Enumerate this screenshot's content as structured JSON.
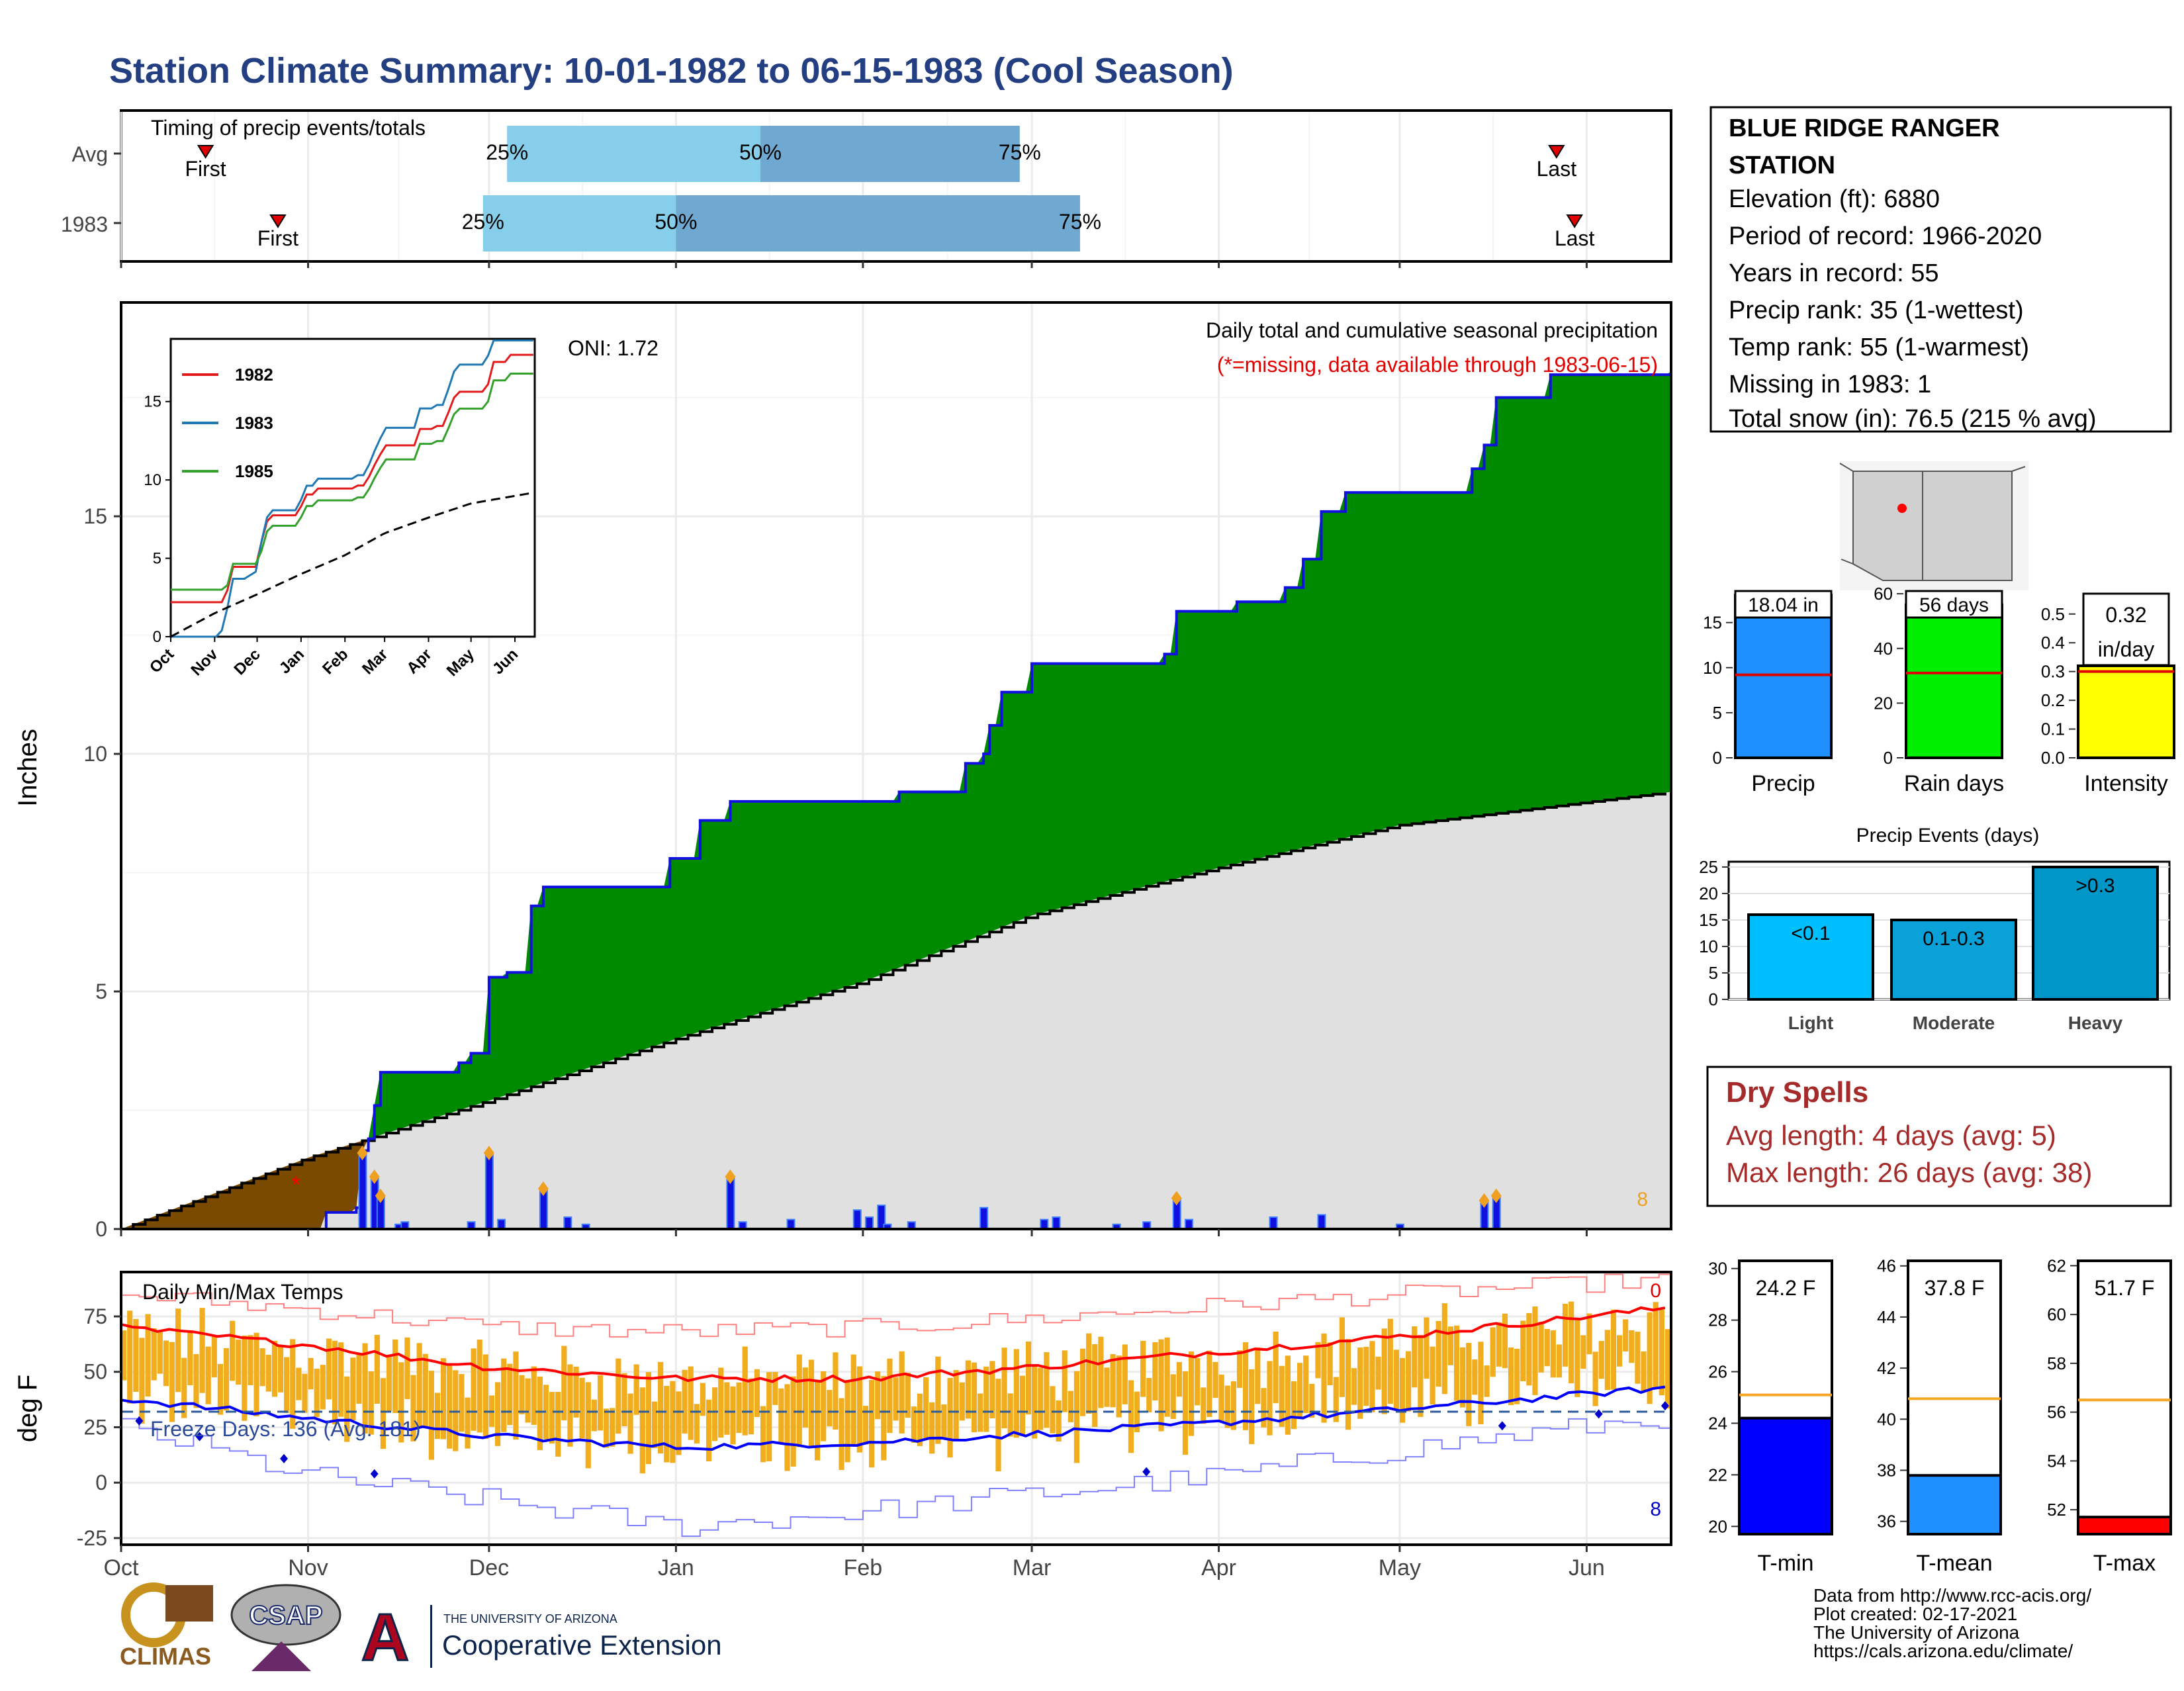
{
  "page": {
    "title": "Station Climate Summary: 10-01-1982 to 06-15-1983 (Cool Season)",
    "colors": {
      "title": "#233f82",
      "precip_green": "#008a00",
      "precip_brown": "#7a4a00",
      "avg_gray": "#e0e0e0",
      "daily_blue": "#1010e0",
      "temp_orange": "#f0ad1e",
      "dry_red": "#a52a2a"
    }
  },
  "timing_panel": {
    "title": "Timing of precip events/totals",
    "rows": [
      {
        "label": "Avg",
        "first_label": "First",
        "last_label": "Last",
        "first_date": "Oct 15",
        "last_date": "May 27",
        "p25_label": "25%",
        "p50_label": "50%",
        "p75_label": "75%",
        "p25_date": "Dec 04",
        "p50_date": "Jan 15",
        "p75_date": "Feb 27"
      },
      {
        "label": "1983",
        "first_label": "First",
        "last_label": "Last",
        "first_date": "Oct 27",
        "last_date": "May 30",
        "p25_label": "25%",
        "p50_label": "50%",
        "p75_label": "75%",
        "p25_date": "Nov 30",
        "p50_date": "Jan 01",
        "p75_date": "Mar 09"
      }
    ]
  },
  "precip_panel": {
    "ylabel": "Inches",
    "y_ticks": [
      "0",
      "5",
      "10",
      "15"
    ],
    "oni": "ONI: 1.72",
    "title": "Daily total and cumulative seasonal precipitation",
    "subtitle": "(*=missing, data available through 1983-06-15)",
    "corner_value": "8"
  },
  "inset": {
    "legend": [
      "1982",
      "1983",
      "1985"
    ],
    "y_ticks": [
      "0",
      "5",
      "10",
      "15"
    ],
    "x_ticks": [
      "Oct",
      "Nov",
      "Dec",
      "Jan",
      "Feb",
      "Mar",
      "Apr",
      "May",
      "Jun"
    ]
  },
  "temp_panel": {
    "ylabel": "deg F",
    "title": "Daily Min/Max Temps",
    "freeze_label": "Freeze Days: 136 (Avg: 181)",
    "y_ticks": [
      "-25",
      "0",
      "25",
      "50",
      "75"
    ],
    "corner_top": "0",
    "corner_bottom": "8"
  },
  "x_axis_months": [
    "Oct",
    "Nov",
    "Dec",
    "Jan",
    "Feb",
    "Mar",
    "Apr",
    "May",
    "Jun"
  ],
  "station": {
    "name_line1": "BLUE RIDGE RANGER",
    "name_line2": "STATION",
    "lines": [
      "Elevation (ft): 6880",
      "Period of record: 1966-2020",
      "Years in record: 55",
      "Precip rank: 35 (1-wettest)",
      "Temp rank: 55 (1-warmest)",
      "Missing in 1983: 1",
      "Total snow (in): 76.5 (215 % avg)"
    ]
  },
  "stat_bars": [
    {
      "label": "Precip",
      "value_label": "18.04 in",
      "value": 18.04,
      "avg": 9.2,
      "ymax": 18.5,
      "ticks": [
        "0",
        "5",
        "10",
        "15"
      ],
      "tick_vals": [
        0,
        5,
        10,
        15
      ],
      "color": "#1e90ff"
    },
    {
      "label": "Rain days",
      "value_label": "56 days",
      "value": 56,
      "avg": 31,
      "ymax": 61,
      "ticks": [
        "0",
        "20",
        "40",
        "60"
      ],
      "tick_vals": [
        0,
        20,
        40,
        60
      ],
      "color": "#00ee00"
    },
    {
      "label": "Intensity",
      "value_label": "0.32",
      "value_label2": "in/day",
      "value": 0.32,
      "avg": 0.3,
      "ymax": 0.58,
      "ticks": [
        "0.0",
        "0.1",
        "0.2",
        "0.3",
        "0.4",
        "0.5"
      ],
      "tick_vals": [
        0,
        0.1,
        0.2,
        0.3,
        0.4,
        0.5
      ],
      "color": "#ffff00"
    }
  ],
  "precip_events": {
    "title": "Precip Events (days)",
    "ticks": [
      "0",
      "5",
      "10",
      "15",
      "20",
      "25"
    ],
    "tick_vals": [
      0,
      5,
      10,
      15,
      20,
      25
    ],
    "categories": [
      "Light",
      "Moderate",
      "Heavy"
    ],
    "bar_labels": [
      "<0.1",
      "0.1-0.3",
      ">0.3"
    ],
    "values": [
      16,
      15,
      25
    ],
    "colors": [
      "#00bfff",
      "#0aa0d8",
      "#0096c8"
    ]
  },
  "dry_spells": {
    "title": "Dry Spells",
    "avg_line": "Avg length: 4 days (avg: 5)",
    "max_line": "Max length: 26 days (avg: 38)"
  },
  "temp_bars": [
    {
      "label": "T-min",
      "value_label": "24.2 F",
      "value": 24.2,
      "avg": 25.1,
      "ymin": 19.7,
      "ymax": 30.3,
      "ticks": [
        "20",
        "22",
        "24",
        "26",
        "28",
        "30"
      ],
      "tick_vals": [
        20,
        22,
        24,
        26,
        28,
        30
      ],
      "color": "#0000ff"
    },
    {
      "label": "T-mean",
      "value_label": "37.8 F",
      "value": 37.8,
      "avg": 40.8,
      "ymin": 35.5,
      "ymax": 46.2,
      "ticks": [
        "36",
        "38",
        "40",
        "42",
        "44",
        "46"
      ],
      "tick_vals": [
        36,
        38,
        40,
        42,
        44,
        46
      ],
      "color": "#1e90ff"
    },
    {
      "label": "T-max",
      "value_label": "51.7 F",
      "value": 51.7,
      "avg": 56.5,
      "ymin": 51.0,
      "ymax": 62.2,
      "ticks": [
        "52",
        "54",
        "56",
        "58",
        "60",
        "62"
      ],
      "tick_vals": [
        52,
        54,
        56,
        58,
        60,
        62
      ],
      "color": "#ff0000"
    }
  ],
  "footer": {
    "lines": [
      "Data from http://www.rcc-acis.org/",
      "Plot created: 02-17-2021",
      "The University of Arizona",
      "https://cals.arizona.edu/climate/"
    ],
    "climas_logo": "CLIMAS",
    "csap_logo": "CSAP",
    "ua_small": "THE UNIVERSITY OF ARIZONA",
    "ua_big": "Cooperative Extension"
  },
  "chart_data": [
    {
      "type": "area",
      "title": "Daily total and cumulative seasonal precipitation",
      "ylabel": "Inches",
      "x_range": [
        "1982-10-01",
        "1983-06-15"
      ],
      "ylim": [
        0,
        19.5
      ],
      "cumulative_1983": [
        {
          "x": "1982-10-01",
          "y": 0
        },
        {
          "x": "1982-11-04",
          "y": 0.35
        },
        {
          "x": "1982-11-09",
          "y": 0.45
        },
        {
          "x": "1982-11-10",
          "y": 1.65
        },
        {
          "x": "1982-11-11",
          "y": 1.9
        },
        {
          "x": "1982-11-12",
          "y": 2.6
        },
        {
          "x": "1982-11-13",
          "y": 3.3
        },
        {
          "x": "1982-11-26",
          "y": 3.5
        },
        {
          "x": "1982-11-28",
          "y": 3.7
        },
        {
          "x": "1982-12-01",
          "y": 5.3
        },
        {
          "x": "1982-12-04",
          "y": 5.4
        },
        {
          "x": "1982-12-08",
          "y": 6.8
        },
        {
          "x": "1982-12-10",
          "y": 7.2
        },
        {
          "x": "1982-12-31",
          "y": 7.8
        },
        {
          "x": "1983-01-05",
          "y": 8.6
        },
        {
          "x": "1983-01-10",
          "y": 9.0
        },
        {
          "x": "1983-02-07",
          "y": 9.2
        },
        {
          "x": "1983-02-18",
          "y": 9.8
        },
        {
          "x": "1983-02-21",
          "y": 10.0
        },
        {
          "x": "1983-02-22",
          "y": 10.6
        },
        {
          "x": "1983-02-24",
          "y": 11.3
        },
        {
          "x": "1983-03-01",
          "y": 11.9
        },
        {
          "x": "1983-03-23",
          "y": 12.1
        },
        {
          "x": "1983-03-25",
          "y": 13.0
        },
        {
          "x": "1983-04-04",
          "y": 13.2
        },
        {
          "x": "1983-04-12",
          "y": 13.5
        },
        {
          "x": "1983-04-15",
          "y": 14.1
        },
        {
          "x": "1983-04-18",
          "y": 15.1
        },
        {
          "x": "1983-04-22",
          "y": 15.5
        },
        {
          "x": "1983-05-13",
          "y": 16.0
        },
        {
          "x": "1983-05-15",
          "y": 16.5
        },
        {
          "x": "1983-05-17",
          "y": 17.5
        },
        {
          "x": "1983-05-26",
          "y": 17.98
        },
        {
          "x": "1983-06-15",
          "y": 18.04
        }
      ],
      "average_cumulative": [
        {
          "x": "1982-10-01",
          "y": 0
        },
        {
          "x": "1982-11-01",
          "y": 1.5
        },
        {
          "x": "1982-12-01",
          "y": 2.7
        },
        {
          "x": "1983-01-01",
          "y": 4.0
        },
        {
          "x": "1983-02-01",
          "y": 5.2
        },
        {
          "x": "1983-03-01",
          "y": 6.6
        },
        {
          "x": "1983-04-01",
          "y": 7.6
        },
        {
          "x": "1983-05-01",
          "y": 8.5
        },
        {
          "x": "1983-06-15",
          "y": 9.2
        }
      ],
      "daily_precip": [
        {
          "x": "1982-11-10",
          "y": 1.6
        },
        {
          "x": "1982-11-12",
          "y": 1.1
        },
        {
          "x": "1982-11-13",
          "y": 0.7
        },
        {
          "x": "1982-11-28",
          "y": 0.15
        },
        {
          "x": "1982-12-01",
          "y": 1.6
        },
        {
          "x": "1982-12-10",
          "y": 0.85
        },
        {
          "x": "1983-01-10",
          "y": 1.1
        },
        {
          "x": "1983-01-31",
          "y": 0.4
        },
        {
          "x": "1983-02-04",
          "y": 0.5
        },
        {
          "x": "1983-02-21",
          "y": 0.45
        },
        {
          "x": "1983-03-25",
          "y": 0.65
        },
        {
          "x": "1983-04-18",
          "y": 0.3
        },
        {
          "x": "1983-05-15",
          "y": 0.6
        },
        {
          "x": "1983-05-17",
          "y": 0.7
        }
      ]
    },
    {
      "type": "line",
      "title": "Daily Min/Max Temps",
      "ylabel": "deg F",
      "ylim": [
        -28,
        95
      ],
      "avg_tmax": [
        {
          "x": "1982-10-01",
          "y": 70
        },
        {
          "x": "1982-11-01",
          "y": 62
        },
        {
          "x": "1982-12-01",
          "y": 52
        },
        {
          "x": "1983-01-01",
          "y": 47
        },
        {
          "x": "1983-02-01",
          "y": 47
        },
        {
          "x": "1983-03-01",
          "y": 52
        },
        {
          "x": "1983-04-01",
          "y": 59
        },
        {
          "x": "1983-05-01",
          "y": 66
        },
        {
          "x": "1983-06-15",
          "y": 79
        }
      ],
      "avg_tmin": [
        {
          "x": "1982-10-01",
          "y": 38
        },
        {
          "x": "1982-11-01",
          "y": 29
        },
        {
          "x": "1982-12-01",
          "y": 21
        },
        {
          "x": "1983-01-01",
          "y": 16
        },
        {
          "x": "1983-02-01",
          "y": 18
        },
        {
          "x": "1983-03-01",
          "y": 22
        },
        {
          "x": "1983-04-01",
          "y": 27
        },
        {
          "x": "1983-05-01",
          "y": 33
        },
        {
          "x": "1983-06-15",
          "y": 43
        }
      ],
      "record_high": [
        {
          "x": "1982-10-01",
          "y": 85
        },
        {
          "x": "1982-11-01",
          "y": 78
        },
        {
          "x": "1982-12-01",
          "y": 70
        },
        {
          "x": "1983-01-01",
          "y": 68
        },
        {
          "x": "1983-02-01",
          "y": 70
        },
        {
          "x": "1983-03-01",
          "y": 74
        },
        {
          "x": "1983-04-01",
          "y": 80
        },
        {
          "x": "1983-05-01",
          "y": 85
        },
        {
          "x": "1983-06-15",
          "y": 92
        }
      ],
      "record_low": [
        {
          "x": "1982-10-01",
          "y": 25
        },
        {
          "x": "1982-11-01",
          "y": 3
        },
        {
          "x": "1982-12-01",
          "y": -8
        },
        {
          "x": "1983-01-01",
          "y": -20
        },
        {
          "x": "1983-02-01",
          "y": -13
        },
        {
          "x": "1983-03-01",
          "y": -5
        },
        {
          "x": "1983-04-01",
          "y": 3
        },
        {
          "x": "1983-05-01",
          "y": 15
        },
        {
          "x": "1983-06-15",
          "y": 30
        }
      ],
      "freeze_line": 32
    }
  ]
}
